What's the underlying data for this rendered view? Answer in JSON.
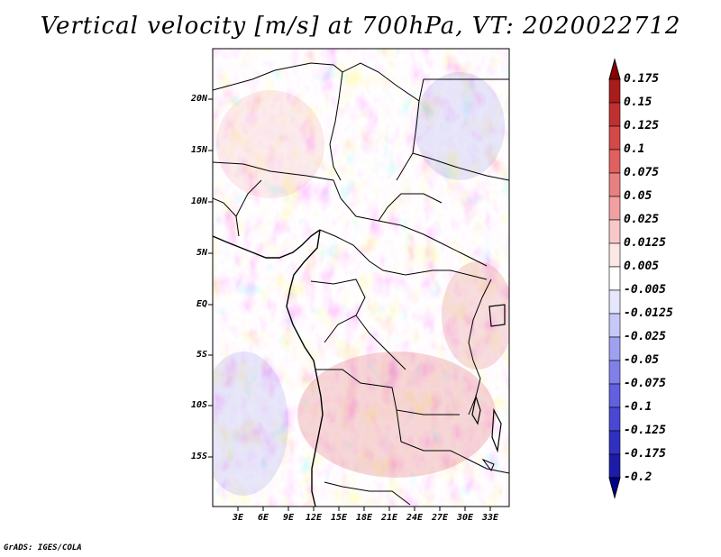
{
  "title": "Vertical velocity [m/s] at 700hPa, VT: 2020022712",
  "footer": "GrADS: IGES/COLA",
  "lat_labels": [
    "20N",
    "15N",
    "10N",
    "5N",
    "EQ",
    "5S",
    "10S",
    "15S"
  ],
  "lon_labels": [
    "3E",
    "6E",
    "9E",
    "12E",
    "15E",
    "18E",
    "21E",
    "24E",
    "27E",
    "30E",
    "33E"
  ],
  "colorbar": {
    "labels": [
      "0.175",
      "0.15",
      "0.125",
      "0.1",
      "0.075",
      "0.05",
      "0.025",
      "0.0125",
      "0.005",
      "-0.005",
      "-0.0125",
      "-0.025",
      "-0.05",
      "-0.075",
      "-0.1",
      "-0.125",
      "-0.175",
      "-0.2"
    ],
    "colors": [
      "#8b0000",
      "#a81c1c",
      "#c03030",
      "#d44848",
      "#e06060",
      "#e88080",
      "#f0a0a0",
      "#f8c8c8",
      "#fde6e6",
      "#ffffff",
      "#e6e6fd",
      "#c8c8f8",
      "#a0a0f0",
      "#8080e8",
      "#6060e0",
      "#4848d4",
      "#3030c0",
      "#1c1ca8",
      "#00008b"
    ]
  },
  "colors": {
    "positive": "#d44848",
    "negative": "#4848d4",
    "coast": "#000000"
  }
}
